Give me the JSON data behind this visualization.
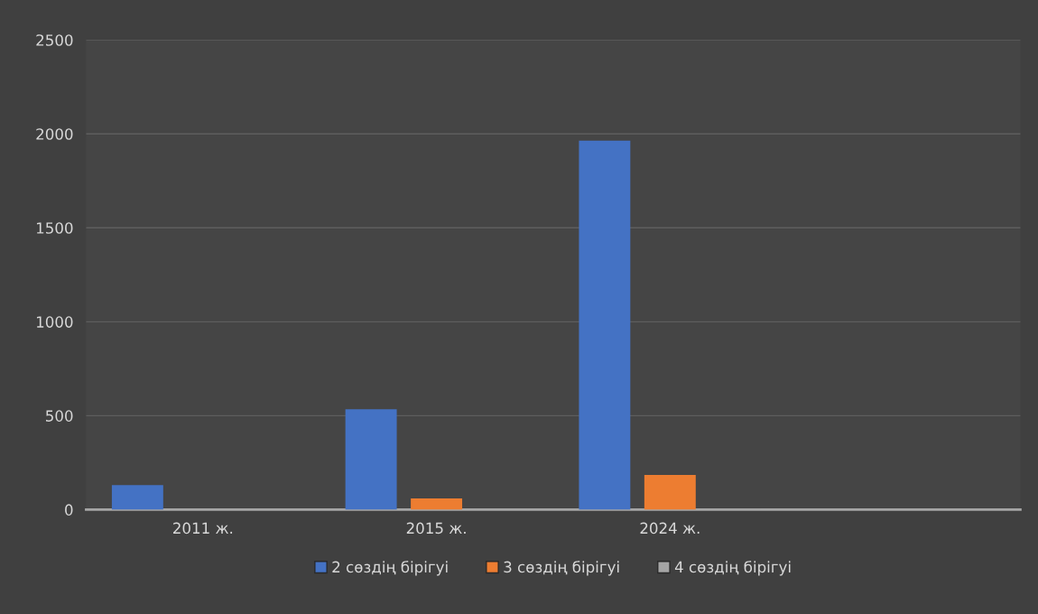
{
  "chart_data": {
    "type": "bar",
    "categories": [
      "2011 ж.",
      "2015 ж.",
      "2024 ж.",
      null
    ],
    "series": [
      {
        "name": "2 сөздің бірігуі",
        "color": "#4472c4",
        "values": [
          131,
          534,
          1964,
          null
        ]
      },
      {
        "name": "3 сөздің бірігуі",
        "color": "#ed7d31",
        "values": [
          null,
          59,
          184,
          null
        ]
      },
      {
        "name": "4 сөздің бірігуі",
        "color": "#a5a5a5",
        "values": [
          0,
          1,
          3,
          null
        ]
      }
    ],
    "ylim": [
      0,
      2500
    ],
    "yticks": [
      0,
      500,
      1000,
      1500,
      2000,
      2500
    ],
    "grid": "y",
    "legend": "bottom"
  }
}
